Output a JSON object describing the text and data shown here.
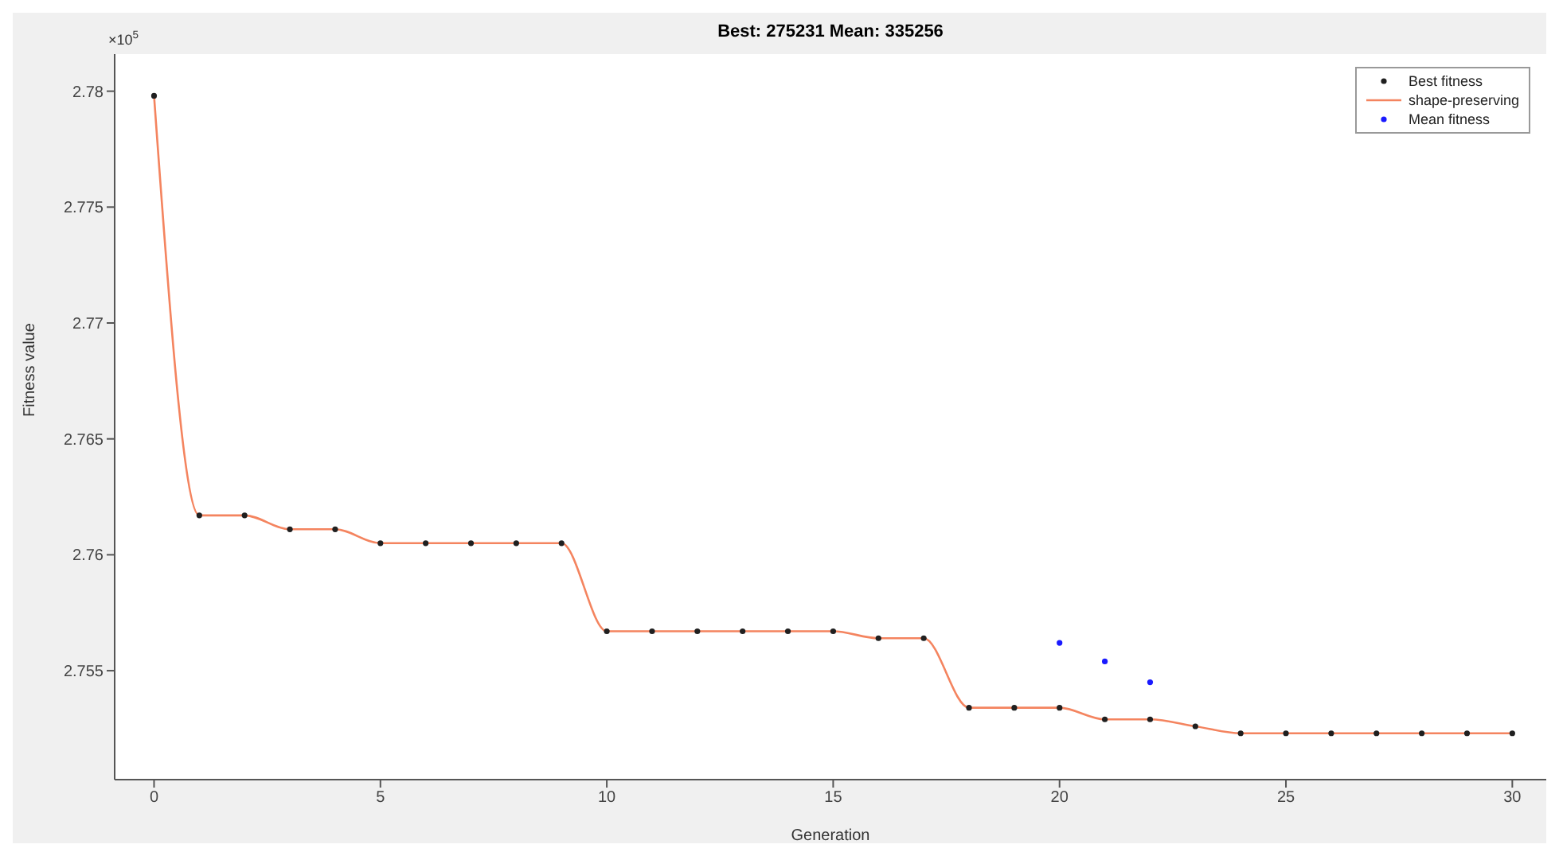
{
  "chart_data": {
    "type": "scatter",
    "title": "Best: 275231 Mean: 335256",
    "xlabel": "Generation",
    "ylabel": "Fitness value",
    "annotations": [
      "×10$^{5}$"
    ],
    "series": [
      {
        "name": "Best fitness",
        "color": "#202020",
        "x": [
          0,
          1,
          2,
          3,
          4,
          5,
          6,
          7,
          8,
          9,
          10,
          11,
          12,
          13,
          14,
          15,
          16,
          17,
          18,
          19,
          20,
          21,
          22,
          23,
          24,
          25,
          26,
          27,
          28,
          29,
          30
        ],
        "values": [
          2.7798,
          2.7617,
          2.7617,
          2.7611,
          2.7611,
          2.7605,
          2.7605,
          2.7605,
          2.7605,
          2.7605,
          2.7567,
          2.7567,
          2.7567,
          2.7567,
          2.7567,
          2.7567,
          2.7564,
          2.7564,
          2.7534,
          2.7534,
          2.7534,
          2.7529,
          2.7529,
          2.7526,
          2.7523,
          2.7523,
          2.7523,
          2.7523,
          2.7523,
          2.7523,
          2.7523
        ]
      },
      {
        "name": "shape-preserving",
        "type": "line",
        "color": "#f4845f",
        "x": [
          0,
          1,
          2,
          3,
          4,
          5,
          6,
          7,
          8,
          9,
          10,
          11,
          12,
          13,
          14,
          15,
          16,
          17,
          18,
          19,
          20,
          21,
          22,
          23,
          24,
          25,
          26,
          27,
          28,
          29,
          30
        ],
        "values": [
          2.7798,
          2.7617,
          2.7617,
          2.7611,
          2.7611,
          2.7605,
          2.7605,
          2.7605,
          2.7605,
          2.7605,
          2.7567,
          2.7567,
          2.7567,
          2.7567,
          2.7567,
          2.7567,
          2.7564,
          2.7564,
          2.7534,
          2.7534,
          2.7534,
          2.7529,
          2.7529,
          2.7526,
          2.7523,
          2.7523,
          2.7523,
          2.7523,
          2.7523,
          2.7523,
          2.7523
        ]
      },
      {
        "name": "Mean fitness",
        "color": "#1a1aff",
        "x": [
          20,
          21,
          22
        ],
        "values": [
          2.7562,
          2.7554,
          2.7545
        ]
      }
    ],
    "xlim": [
      -0.87,
      30.75
    ],
    "xticks": [
      0,
      5,
      10,
      15,
      20,
      25,
      30
    ],
    "ylim": [
      2.7503,
      2.7816
    ],
    "yticks": [
      2.755,
      2.76,
      2.765,
      2.77,
      2.775,
      2.78
    ],
    "grid": false,
    "legend": "top right",
    "line_style": "solid"
  }
}
